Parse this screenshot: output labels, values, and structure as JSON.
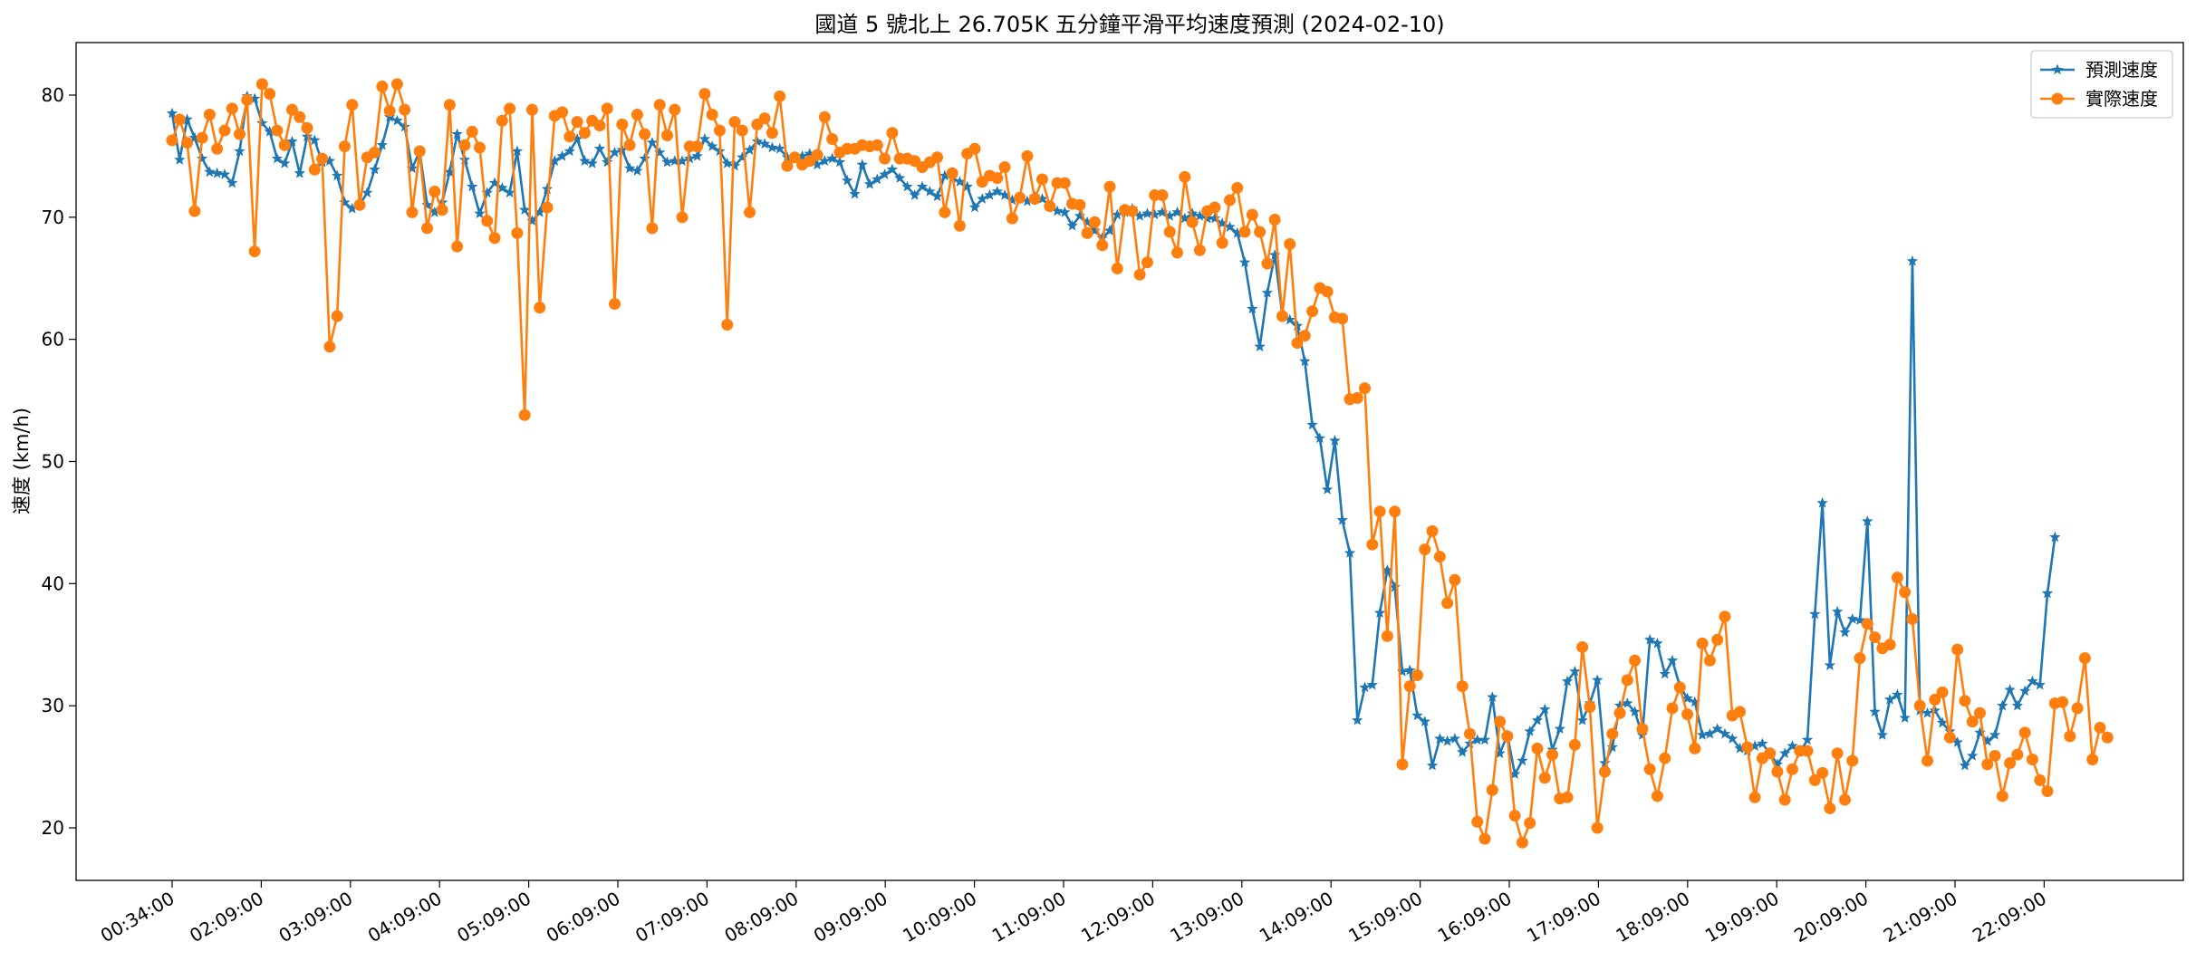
{
  "chart_data": {
    "type": "line",
    "title": "國道 5 號北上 26.705K 五分鐘平滑平均速度預測 (2024-02-10)",
    "xlabel": "",
    "ylabel": "速度 (km/h)",
    "ylim": [
      15.7,
      84.3
    ],
    "yticks": [
      20,
      30,
      40,
      50,
      60,
      70,
      80
    ],
    "xtick_labels": [
      "00:34:00",
      "02:09:00",
      "03:09:00",
      "04:09:00",
      "05:09:00",
      "06:09:00",
      "07:09:00",
      "08:09:00",
      "09:09:00",
      "10:09:00",
      "11:09:00",
      "12:09:00",
      "13:09:00",
      "14:09:00",
      "15:09:00",
      "16:09:00",
      "17:09:00",
      "18:09:00",
      "19:09:00",
      "20:09:00",
      "21:09:00",
      "22:09:00"
    ],
    "legend_position": "top-right",
    "grid": false,
    "series": [
      {
        "name": "預測速度",
        "color": "#1f77b4",
        "marker": "star",
        "values": [
          78.5,
          74.7,
          78.0,
          76.5,
          74.8,
          73.7,
          73.6,
          73.5,
          72.8,
          75.4,
          79.9,
          79.7,
          77.7,
          77.0,
          74.8,
          74.4,
          76.2,
          73.6,
          76.6,
          76.3,
          74.5,
          74.6,
          73.4,
          71.2,
          70.7,
          71.0,
          72.0,
          73.9,
          75.9,
          78.2,
          77.9,
          77.4,
          74.0,
          75.4,
          71.0,
          70.4,
          71.2,
          73.7,
          76.8,
          74.7,
          72.5,
          70.3,
          72.0,
          72.8,
          72.4,
          72.0,
          75.4,
          70.6,
          69.7,
          70.4,
          72.3,
          74.6,
          75.0,
          75.4,
          76.4,
          74.6,
          74.4,
          75.6,
          74.5,
          75.3,
          75.5,
          74.0,
          73.8,
          74.8,
          76.1,
          75.3,
          74.5,
          74.6,
          74.6,
          74.8,
          75.0,
          76.4,
          75.8,
          75.4,
          74.4,
          74.2,
          74.9,
          75.5,
          76.2,
          76.0,
          75.7,
          75.6,
          74.9,
          74.8,
          75.0,
          75.2,
          74.3,
          74.6,
          74.8,
          74.5,
          73.0,
          71.9,
          74.3,
          72.7,
          73.1,
          73.5,
          73.9,
          73.2,
          72.5,
          71.8,
          72.5,
          72.1,
          71.7,
          73.4,
          73.2,
          72.9,
          72.5,
          70.8,
          71.5,
          71.8,
          72.1,
          71.8,
          71.4,
          71.5,
          71.3,
          71.7,
          71.5,
          70.9,
          70.5,
          70.4,
          69.3,
          70.1,
          69.6,
          68.9,
          68.3,
          68.9,
          70.2,
          70.4,
          70.7,
          70.1,
          70.3,
          70.2,
          70.4,
          70.1,
          70.4,
          69.9,
          70.3,
          70.1,
          69.9,
          69.9,
          69.5,
          69.2,
          68.7,
          66.3,
          62.5,
          59.4,
          63.8,
          66.9,
          62.0,
          61.6,
          61.1,
          58.2,
          53.0,
          51.9,
          47.7,
          51.7,
          45.2,
          42.5,
          28.8,
          31.5,
          31.7,
          37.6,
          41.1,
          39.7,
          32.8,
          32.9,
          29.2,
          28.7,
          25.1,
          27.3,
          27.1,
          27.3,
          26.2,
          26.9,
          27.2,
          27.2,
          30.7,
          26.1,
          27.6,
          24.4,
          25.5,
          27.9,
          28.8,
          29.7,
          26.4,
          28.1,
          32.0,
          32.8,
          28.8,
          30.2,
          32.1,
          25.3,
          26.6,
          30.0,
          30.2,
          29.5,
          27.6,
          35.4,
          35.1,
          32.6,
          33.7,
          31.6,
          30.6,
          30.3,
          27.6,
          27.7,
          28.1,
          27.7,
          27.3,
          26.5,
          26.3,
          26.7,
          26.9,
          26.1,
          25.2,
          26.1,
          26.7,
          26.2,
          27.2,
          37.5,
          46.6,
          33.3,
          37.7,
          36.0,
          37.1,
          37.0,
          45.1,
          29.5,
          27.6,
          30.5,
          30.9,
          29.0,
          66.4,
          29.6,
          29.4,
          29.6,
          28.6,
          27.9,
          27.0,
          25.1,
          25.9,
          27.8,
          27.1,
          27.6,
          30.0,
          31.3,
          30.0,
          31.2,
          32.0,
          31.7,
          39.2,
          43.8
        ]
      },
      {
        "name": "實際速度",
        "color": "#ff7f0e",
        "marker": "circle",
        "values": [
          76.3,
          78.0,
          76.1,
          70.5,
          76.5,
          78.4,
          75.6,
          77.1,
          78.9,
          76.8,
          79.6,
          67.2,
          80.9,
          80.1,
          77.1,
          75.9,
          78.8,
          78.2,
          77.3,
          73.9,
          74.8,
          59.4,
          61.9,
          75.8,
          79.2,
          71.0,
          74.9,
          75.3,
          80.7,
          78.7,
          80.9,
          78.8,
          70.4,
          75.4,
          69.1,
          72.1,
          70.6,
          79.2,
          67.6,
          75.9,
          77.0,
          75.7,
          69.7,
          68.3,
          77.9,
          78.9,
          68.7,
          53.8,
          78.8,
          62.6,
          70.8,
          78.3,
          78.6,
          76.6,
          77.8,
          76.9,
          77.9,
          77.5,
          78.9,
          62.9,
          77.6,
          75.9,
          78.4,
          76.8,
          69.1,
          79.2,
          76.7,
          78.8,
          70.0,
          75.8,
          75.8,
          80.1,
          78.4,
          77.1,
          61.2,
          77.8,
          77.1,
          70.4,
          77.6,
          78.1,
          76.9,
          79.9,
          74.2,
          74.9,
          74.3,
          74.6,
          75.1,
          78.2,
          76.4,
          75.3,
          75.6,
          75.6,
          75.9,
          75.8,
          75.9,
          74.8,
          76.9,
          74.8,
          74.8,
          74.6,
          74.1,
          74.5,
          74.9,
          70.4,
          73.6,
          69.3,
          75.2,
          75.6,
          72.9,
          73.4,
          73.2,
          74.1,
          69.9,
          71.6,
          75.0,
          71.5,
          73.1,
          70.9,
          72.8,
          72.8,
          71.1,
          71.0,
          68.7,
          69.6,
          67.7,
          72.5,
          65.8,
          70.6,
          70.5,
          65.3,
          66.3,
          71.8,
          71.8,
          68.8,
          67.1,
          73.3,
          69.6,
          67.3,
          70.5,
          70.8,
          67.9,
          71.4,
          72.4,
          68.8,
          70.2,
          68.8,
          66.2,
          69.8,
          61.9,
          67.8,
          59.7,
          60.3,
          62.3,
          64.2,
          63.9,
          61.8,
          61.7,
          55.1,
          55.2,
          56.0,
          43.2,
          45.9,
          35.7,
          45.9,
          25.2,
          31.6,
          32.5,
          42.8,
          44.3,
          42.2,
          38.4,
          40.3,
          31.6,
          27.7,
          20.5,
          19.1,
          23.1,
          28.7,
          27.5,
          21.0,
          18.8,
          20.4,
          26.5,
          24.1,
          26.0,
          22.4,
          22.5,
          26.8,
          34.8,
          29.9,
          20.0,
          24.6,
          27.7,
          29.4,
          32.1,
          33.7,
          28.1,
          24.8,
          22.6,
          25.7,
          29.8,
          31.5,
          29.3,
          26.5,
          35.1,
          33.7,
          35.4,
          37.3,
          29.2,
          29.5,
          26.6,
          22.5,
          25.7,
          26.1,
          24.6,
          22.3,
          24.8,
          26.3,
          26.3,
          23.9,
          24.5,
          21.6,
          26.1,
          22.3,
          25.5,
          33.9,
          36.7,
          35.6,
          34.7,
          35.0,
          40.5,
          39.3,
          37.1,
          30.0,
          25.5,
          30.5,
          31.1,
          27.4,
          34.6,
          30.4,
          28.7,
          29.4,
          25.2,
          25.9,
          22.6,
          25.3,
          26.0,
          27.8,
          25.6,
          23.9,
          23.0,
          30.2,
          30.3,
          27.5,
          29.8,
          33.9,
          25.6,
          28.2,
          27.4
        ]
      }
    ]
  }
}
